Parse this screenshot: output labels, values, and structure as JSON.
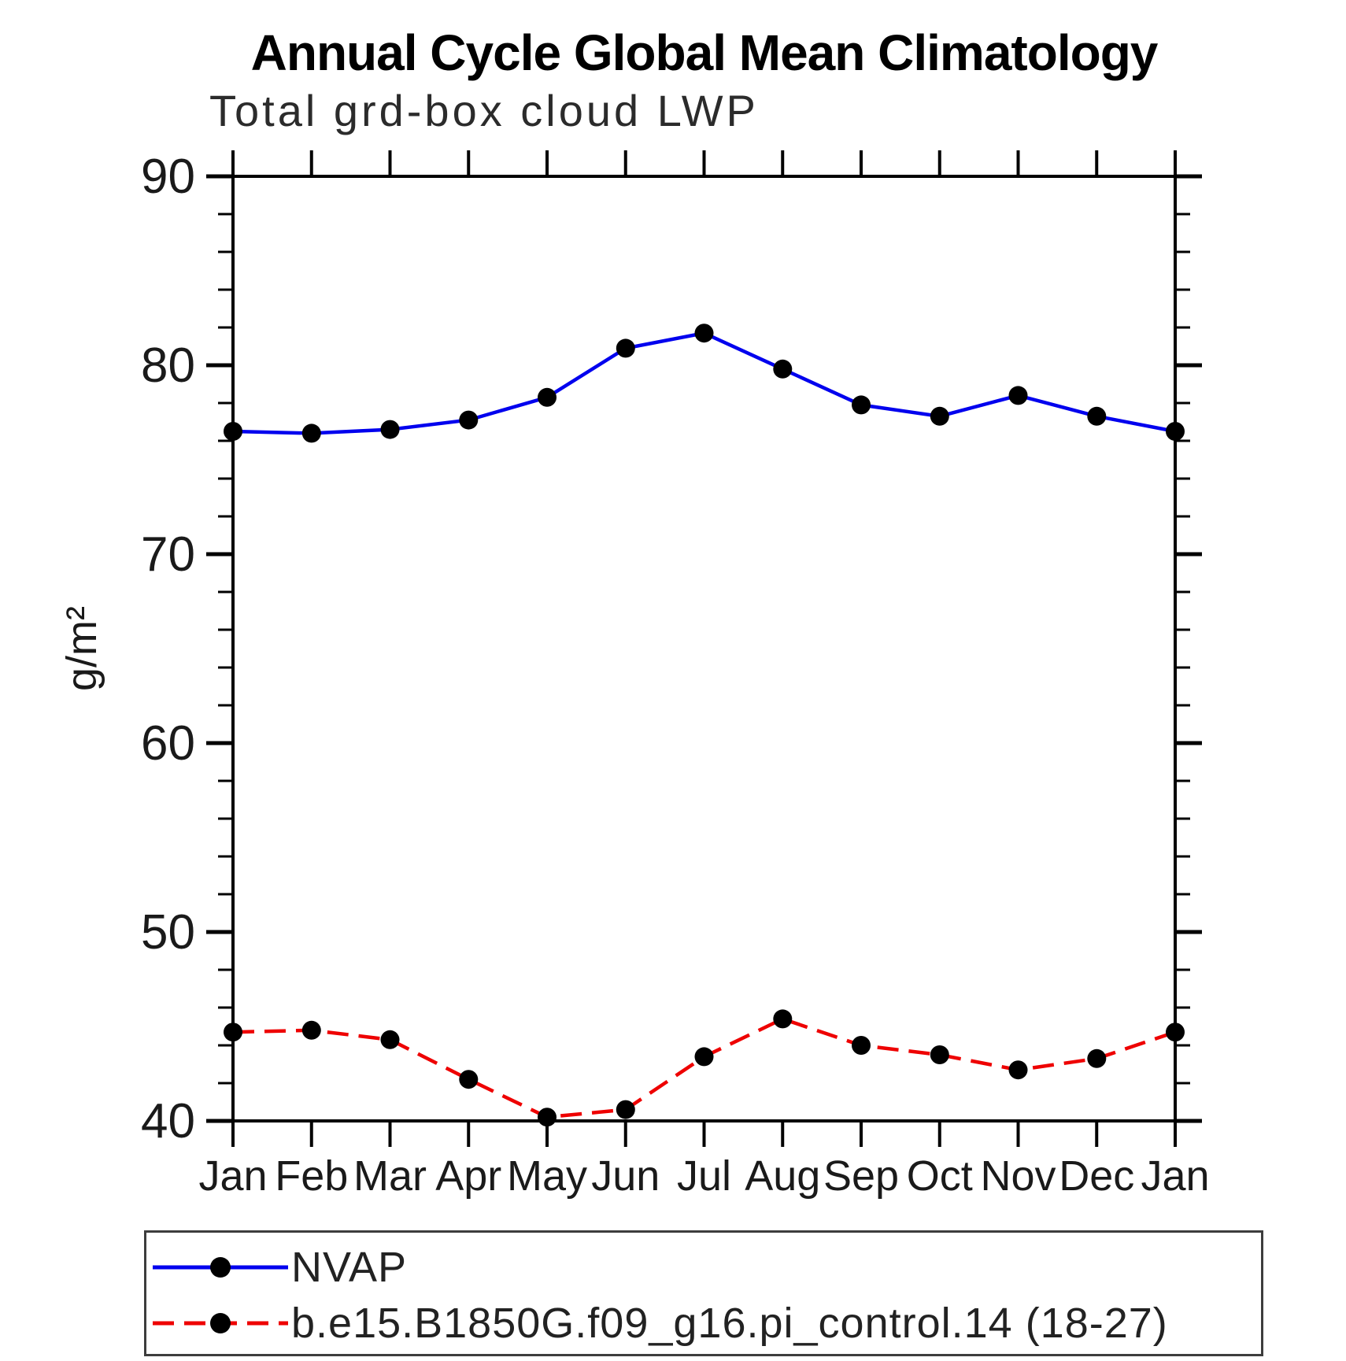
{
  "title": "Annual Cycle Global Mean Climatology",
  "subtitle": "Total grd-box cloud LWP",
  "ylabel": "g/m²",
  "chart_data": {
    "type": "line",
    "categories": [
      "Jan",
      "Feb",
      "Mar",
      "Apr",
      "May",
      "Jun",
      "Jul",
      "Aug",
      "Sep",
      "Oct",
      "Nov",
      "Dec",
      "Jan"
    ],
    "series": [
      {
        "name": "NVAP",
        "color": "#0000ee",
        "line_style": "solid",
        "marker": "filled-black-circle",
        "values": [
          76.5,
          76.4,
          76.6,
          77.1,
          78.3,
          80.9,
          81.7,
          79.8,
          77.9,
          77.3,
          78.4,
          77.3,
          76.5
        ]
      },
      {
        "name": "b.e15.B1850G.f09_g16.pi_control.14 (18-27)",
        "color": "#ee0000",
        "line_style": "dashed",
        "marker": "filled-black-circle",
        "values": [
          44.7,
          44.8,
          44.3,
          42.2,
          40.2,
          40.6,
          43.4,
          45.4,
          44.0,
          43.5,
          42.7,
          43.3,
          44.7
        ]
      }
    ],
    "ylim": [
      40,
      90
    ],
    "yticks_major": [
      40,
      50,
      60,
      70,
      80,
      90
    ],
    "ytick_minor_step": 2,
    "grid": false,
    "frame": "box-with-outward-ticks",
    "legend_position": "bottom-left-box",
    "axis_color": "#000000",
    "text_color": "#1a1a1a"
  }
}
